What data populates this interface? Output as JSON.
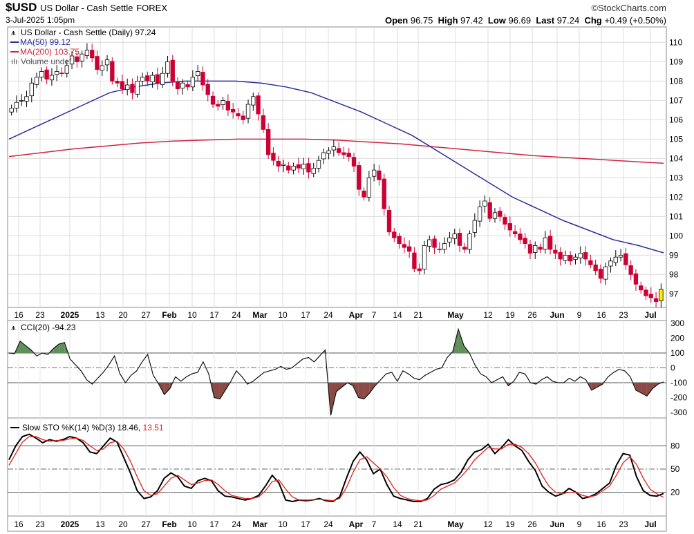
{
  "header": {
    "symbol": "$USD",
    "name": "US Dollar - Cash Settle",
    "exchange": "FOREX",
    "datetime": "3-Jul-2025 1:05pm",
    "brand": "©StockCharts.com",
    "open_label": "Open",
    "open": "96.75",
    "high_label": "High",
    "high": "97.42",
    "low_label": "Low",
    "low": "96.69",
    "last_label": "Last",
    "last": "97.24",
    "chg_label": "Chg",
    "chg": "+0.49 (+0.50%)"
  },
  "price_panel": {
    "legend_title": "US Dollar - Cash Settle (Daily) 97.24",
    "legend_ma50": "MA(50) 99.12",
    "legend_ma200": "MA(200) 103.75",
    "legend_volume": "Volume undef",
    "y_ticks": [
      "110",
      "109",
      "108",
      "107",
      "106",
      "105",
      "104",
      "103",
      "102",
      "101",
      "100",
      "99",
      "98",
      "97"
    ],
    "ma50_color": "#2c2c9c",
    "ma200_color": "#d0223f",
    "up_color": "#ffffff",
    "down_color": "#cc0033",
    "last_bar_color": "#ffee00"
  },
  "x_axis": {
    "labels": [
      {
        "text": "16",
        "bold": false
      },
      {
        "text": "23",
        "bold": false
      },
      {
        "text": "2025",
        "bold": true
      },
      {
        "text": "13",
        "bold": false
      },
      {
        "text": "20",
        "bold": false
      },
      {
        "text": "27",
        "bold": false
      },
      {
        "text": "Feb",
        "bold": true
      },
      {
        "text": "10",
        "bold": false
      },
      {
        "text": "17",
        "bold": false
      },
      {
        "text": "24",
        "bold": false
      },
      {
        "text": "Mar",
        "bold": true
      },
      {
        "text": "10",
        "bold": false
      },
      {
        "text": "17",
        "bold": false
      },
      {
        "text": "24",
        "bold": false
      },
      {
        "text": "Apr",
        "bold": true
      },
      {
        "text": "7",
        "bold": false
      },
      {
        "text": "14",
        "bold": false
      },
      {
        "text": "21",
        "bold": false
      },
      {
        "text": "May",
        "bold": true
      },
      {
        "text": "12",
        "bold": false
      },
      {
        "text": "19",
        "bold": false
      },
      {
        "text": "26",
        "bold": false
      },
      {
        "text": "Jun",
        "bold": true
      },
      {
        "text": "9",
        "bold": false
      },
      {
        "text": "16",
        "bold": false
      },
      {
        "text": "23",
        "bold": false
      },
      {
        "text": "Jul",
        "bold": true
      }
    ]
  },
  "cci_panel": {
    "legend": "CCI(20) -94.23",
    "y_ticks": [
      "300",
      "200",
      "100",
      "0",
      "-100",
      "-200",
      "-300"
    ]
  },
  "sto_panel": {
    "legend_prefix": "Slow STO %K(14) %D(3) 18.46, ",
    "legend_d": "13.51",
    "y_ticks": [
      "80",
      "50",
      "20"
    ],
    "k_color": "#000000",
    "d_color": "#e0201a"
  },
  "chart_data": [
    {
      "type": "candlestick",
      "title": "US Dollar - Cash Settle (Daily)",
      "ylim": [
        96.3,
        110.8
      ],
      "x_labels": [
        "16",
        "23",
        "2025",
        "13",
        "20",
        "27",
        "Feb",
        "10",
        "17",
        "24",
        "Mar",
        "10",
        "17",
        "24",
        "Apr",
        "7",
        "14",
        "21",
        "May",
        "12",
        "19",
        "26",
        "Jun",
        "9",
        "16",
        "23",
        "Jul"
      ],
      "closes": [
        106.6,
        106.9,
        107.0,
        107.2,
        107.9,
        108.2,
        108.5,
        108.1,
        108.3,
        108.5,
        108.4,
        108.8,
        109.3,
        109.0,
        109.4,
        109.6,
        109.2,
        108.6,
        108.8,
        109.1,
        108.0,
        107.9,
        107.6,
        107.8,
        107.4,
        108.0,
        108.2,
        108.0,
        108.3,
        107.9,
        108.4,
        109.0,
        108.0,
        107.6,
        107.9,
        107.7,
        108.2,
        108.5,
        107.8,
        107.3,
        106.8,
        106.7,
        107.0,
        106.5,
        106.4,
        106.2,
        106.0,
        106.8,
        107.2,
        106.3,
        105.5,
        104.2,
        103.9,
        103.6,
        103.7,
        103.4,
        103.6,
        103.5,
        103.7,
        103.3,
        103.5,
        103.9,
        104.3,
        104.4,
        104.6,
        104.3,
        104.2,
        104.1,
        103.6,
        102.4,
        102.0,
        103.0,
        103.4,
        102.9,
        101.4,
        100.2,
        99.9,
        99.6,
        99.4,
        99.2,
        98.3,
        98.2,
        99.5,
        99.8,
        99.4,
        99.3,
        99.6,
        99.9,
        100.1,
        99.5,
        99.3,
        100.1,
        100.8,
        101.5,
        101.8,
        100.9,
        101.2,
        101.0,
        100.6,
        100.3,
        100.1,
        99.8,
        99.6,
        99.1,
        99.5,
        99.3,
        99.9,
        99.3,
        99.1,
        98.8,
        99.0,
        98.7,
        98.9,
        99.1,
        98.8,
        98.5,
        98.2,
        97.8,
        98.4,
        98.7,
        98.9,
        99.0,
        98.5,
        98.0,
        97.5,
        97.2,
        96.9,
        96.8,
        96.6,
        97.24
      ],
      "ma50": [
        105.0,
        105.6,
        106.2,
        106.8,
        107.4,
        107.7,
        107.9,
        108.0,
        108.0,
        108.0,
        107.9,
        107.7,
        107.4,
        106.9,
        106.4,
        105.8,
        105.2,
        104.4,
        103.6,
        102.8,
        102.0,
        101.4,
        100.8,
        100.3,
        99.8,
        99.5,
        99.12
      ],
      "ma200": [
        104.1,
        104.3,
        104.5,
        104.65,
        104.8,
        104.9,
        104.95,
        105.0,
        105.0,
        105.0,
        104.95,
        104.85,
        104.75,
        104.6,
        104.45,
        104.3,
        104.15,
        104.05,
        103.95,
        103.85,
        103.75
      ],
      "series_names": [
        "MA(50)",
        "MA(200)"
      ]
    },
    {
      "type": "line",
      "title": "CCI(20)",
      "ylim": [
        -300,
        300
      ],
      "values": [
        100,
        95,
        180,
        150,
        120,
        80,
        100,
        90,
        130,
        160,
        170,
        60,
        20,
        -20,
        -80,
        -110,
        -70,
        -30,
        20,
        80,
        -40,
        -100,
        -50,
        -20,
        40,
        90,
        -50,
        -110,
        -180,
        -140,
        -60,
        -90,
        -60,
        -40,
        -30,
        40,
        -40,
        -200,
        -210,
        -150,
        -90,
        -20,
        -60,
        -110,
        -90,
        -60,
        -30,
        -20,
        -10,
        10,
        -10,
        0,
        30,
        60,
        70,
        40,
        80,
        120,
        -320,
        -160,
        -130,
        -100,
        -120,
        -200,
        -210,
        -170,
        -120,
        -80,
        -40,
        -30,
        -90,
        -20,
        -40,
        -70,
        -80,
        -50,
        -30,
        -10,
        0,
        70,
        110,
        260,
        150,
        100,
        20,
        -40,
        -60,
        -100,
        -80,
        -60,
        -120,
        -90,
        -30,
        -40,
        -100,
        -110,
        -80,
        -60,
        -90,
        -100,
        -100,
        -70,
        -90,
        -60,
        -80,
        -150,
        -130,
        -110,
        -60,
        -30,
        -10,
        -20,
        -60,
        -150,
        -170,
        -190,
        -140,
        -110,
        -94.23
      ]
    },
    {
      "type": "line",
      "title": "Slow STO %K(14) %D(3)",
      "ylim": [
        0,
        100
      ],
      "series": [
        {
          "name": "%K(14)",
          "values": [
            62,
            80,
            92,
            95,
            90,
            84,
            88,
            86,
            88,
            92,
            90,
            84,
            72,
            70,
            80,
            90,
            85,
            65,
            45,
            22,
            12,
            14,
            22,
            38,
            45,
            40,
            28,
            25,
            35,
            38,
            35,
            22,
            15,
            14,
            12,
            10,
            12,
            16,
            28,
            42,
            32,
            10,
            8,
            10,
            9,
            10,
            12,
            9,
            8,
            14,
            38,
            60,
            72,
            62,
            44,
            50,
            30,
            15,
            12,
            10,
            8,
            8,
            12,
            24,
            30,
            32,
            36,
            46,
            62,
            72,
            75,
            82,
            70,
            78,
            88,
            80,
            74,
            60,
            48,
            28,
            20,
            15,
            18,
            25,
            20,
            12,
            14,
            18,
            25,
            32,
            55,
            70,
            68,
            40,
            22,
            16,
            15,
            18.46
          ]
        },
        {
          "name": "%D(3)",
          "values": [
            55,
            70,
            85,
            92,
            92,
            88,
            86,
            87,
            87,
            89,
            90,
            87,
            80,
            74,
            76,
            84,
            86,
            76,
            60,
            40,
            22,
            16,
            18,
            28,
            38,
            42,
            36,
            30,
            32,
            35,
            36,
            30,
            22,
            16,
            14,
            12,
            12,
            14,
            22,
            34,
            36,
            24,
            14,
            10,
            10,
            10,
            11,
            10,
            9,
            12,
            26,
            46,
            62,
            66,
            58,
            50,
            40,
            26,
            16,
            12,
            10,
            9,
            10,
            16,
            24,
            28,
            32,
            40,
            50,
            62,
            70,
            78,
            76,
            76,
            82,
            82,
            78,
            70,
            58,
            42,
            28,
            20,
            18,
            20,
            20,
            16,
            14,
            16,
            22,
            28,
            42,
            58,
            66,
            56,
            38,
            24,
            18,
            13.51
          ]
        }
      ]
    }
  ]
}
